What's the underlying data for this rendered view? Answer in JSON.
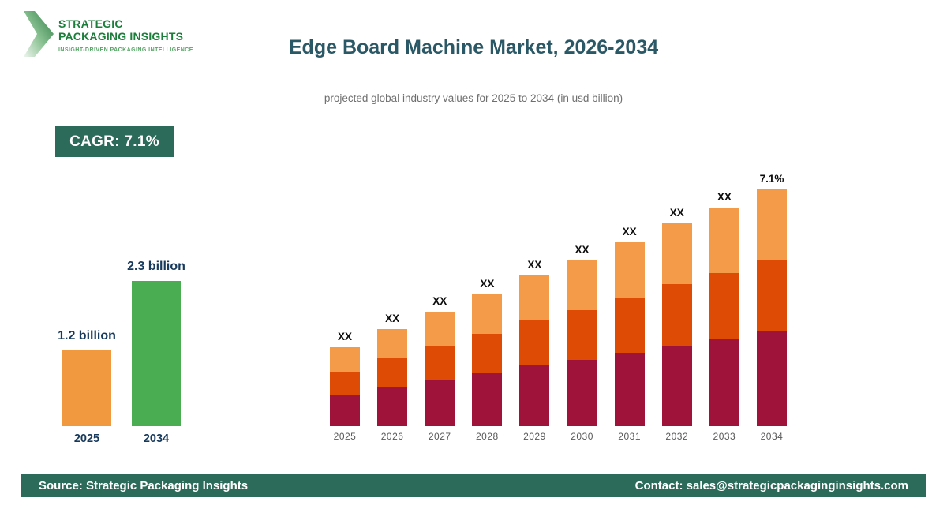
{
  "brand": {
    "line1": "STRATEGIC",
    "line2": "PACKAGING INSIGHTS",
    "tagline": "INSIGHT-DRIVEN PACKAGING INTELLIGENCE"
  },
  "header": {
    "title": "Edge Board Machine Market, 2026-2034",
    "subtitle": "projected global industry values for 2025 to 2034 (in usd billion)"
  },
  "cagr_badge": {
    "label": "CAGR: 7.1%"
  },
  "footer": {
    "source": "Source: Strategic Packaging Insights",
    "contact": "Contact: sales@strategicpackaginginsights.com"
  },
  "colors": {
    "accent_green_dark": "#2c6b59",
    "title_teal": "#2b5866",
    "label_navy": "#16395c",
    "brand_green": "#1b7e3a",
    "bar_orange_mini": "#f0993f",
    "bar_green_mini": "#4bad52",
    "bar_maroon": "#9f1239",
    "bar_orange_dark": "#dd4b04",
    "bar_orange_light": "#f49b4a"
  },
  "chart_data": [
    {
      "type": "bar",
      "name": "summary-2025-vs-2034",
      "categories": [
        "2025",
        "2034"
      ],
      "values": [
        1.2,
        2.3
      ],
      "value_labels": [
        "1.2 billion",
        "2.3 billion"
      ],
      "bar_colors": [
        "#f0993f",
        "#4bad52"
      ],
      "unit": "usd billion",
      "grid": false,
      "legend": false
    },
    {
      "type": "bar",
      "subtype": "stacked",
      "name": "projection-2025-2034",
      "categories": [
        "2025",
        "2026",
        "2027",
        "2028",
        "2029",
        "2030",
        "2031",
        "2032",
        "2033",
        "2034"
      ],
      "series": [
        {
          "name": "bottom",
          "color": "#9f1239",
          "relative_heights": [
            39,
            50,
            59,
            68,
            77,
            84,
            93,
            102,
            111,
            120
          ]
        },
        {
          "name": "middle",
          "color": "#dd4b04",
          "relative_heights": [
            30,
            36,
            42,
            49,
            57,
            63,
            70,
            78,
            83,
            90
          ]
        },
        {
          "name": "top",
          "color": "#f49b4a",
          "relative_heights": [
            31,
            37,
            44,
            50,
            57,
            63,
            70,
            77,
            83,
            90
          ]
        }
      ],
      "bar_labels": [
        "XX",
        "XX",
        "XX",
        "XX",
        "XX",
        "XX",
        "XX",
        "XX",
        "XX",
        "7.1%"
      ],
      "values_disclosed": false,
      "note": "segment values not disclosed in source (shown as XX); heights are visual proportions",
      "grid": false,
      "legend": false
    }
  ]
}
